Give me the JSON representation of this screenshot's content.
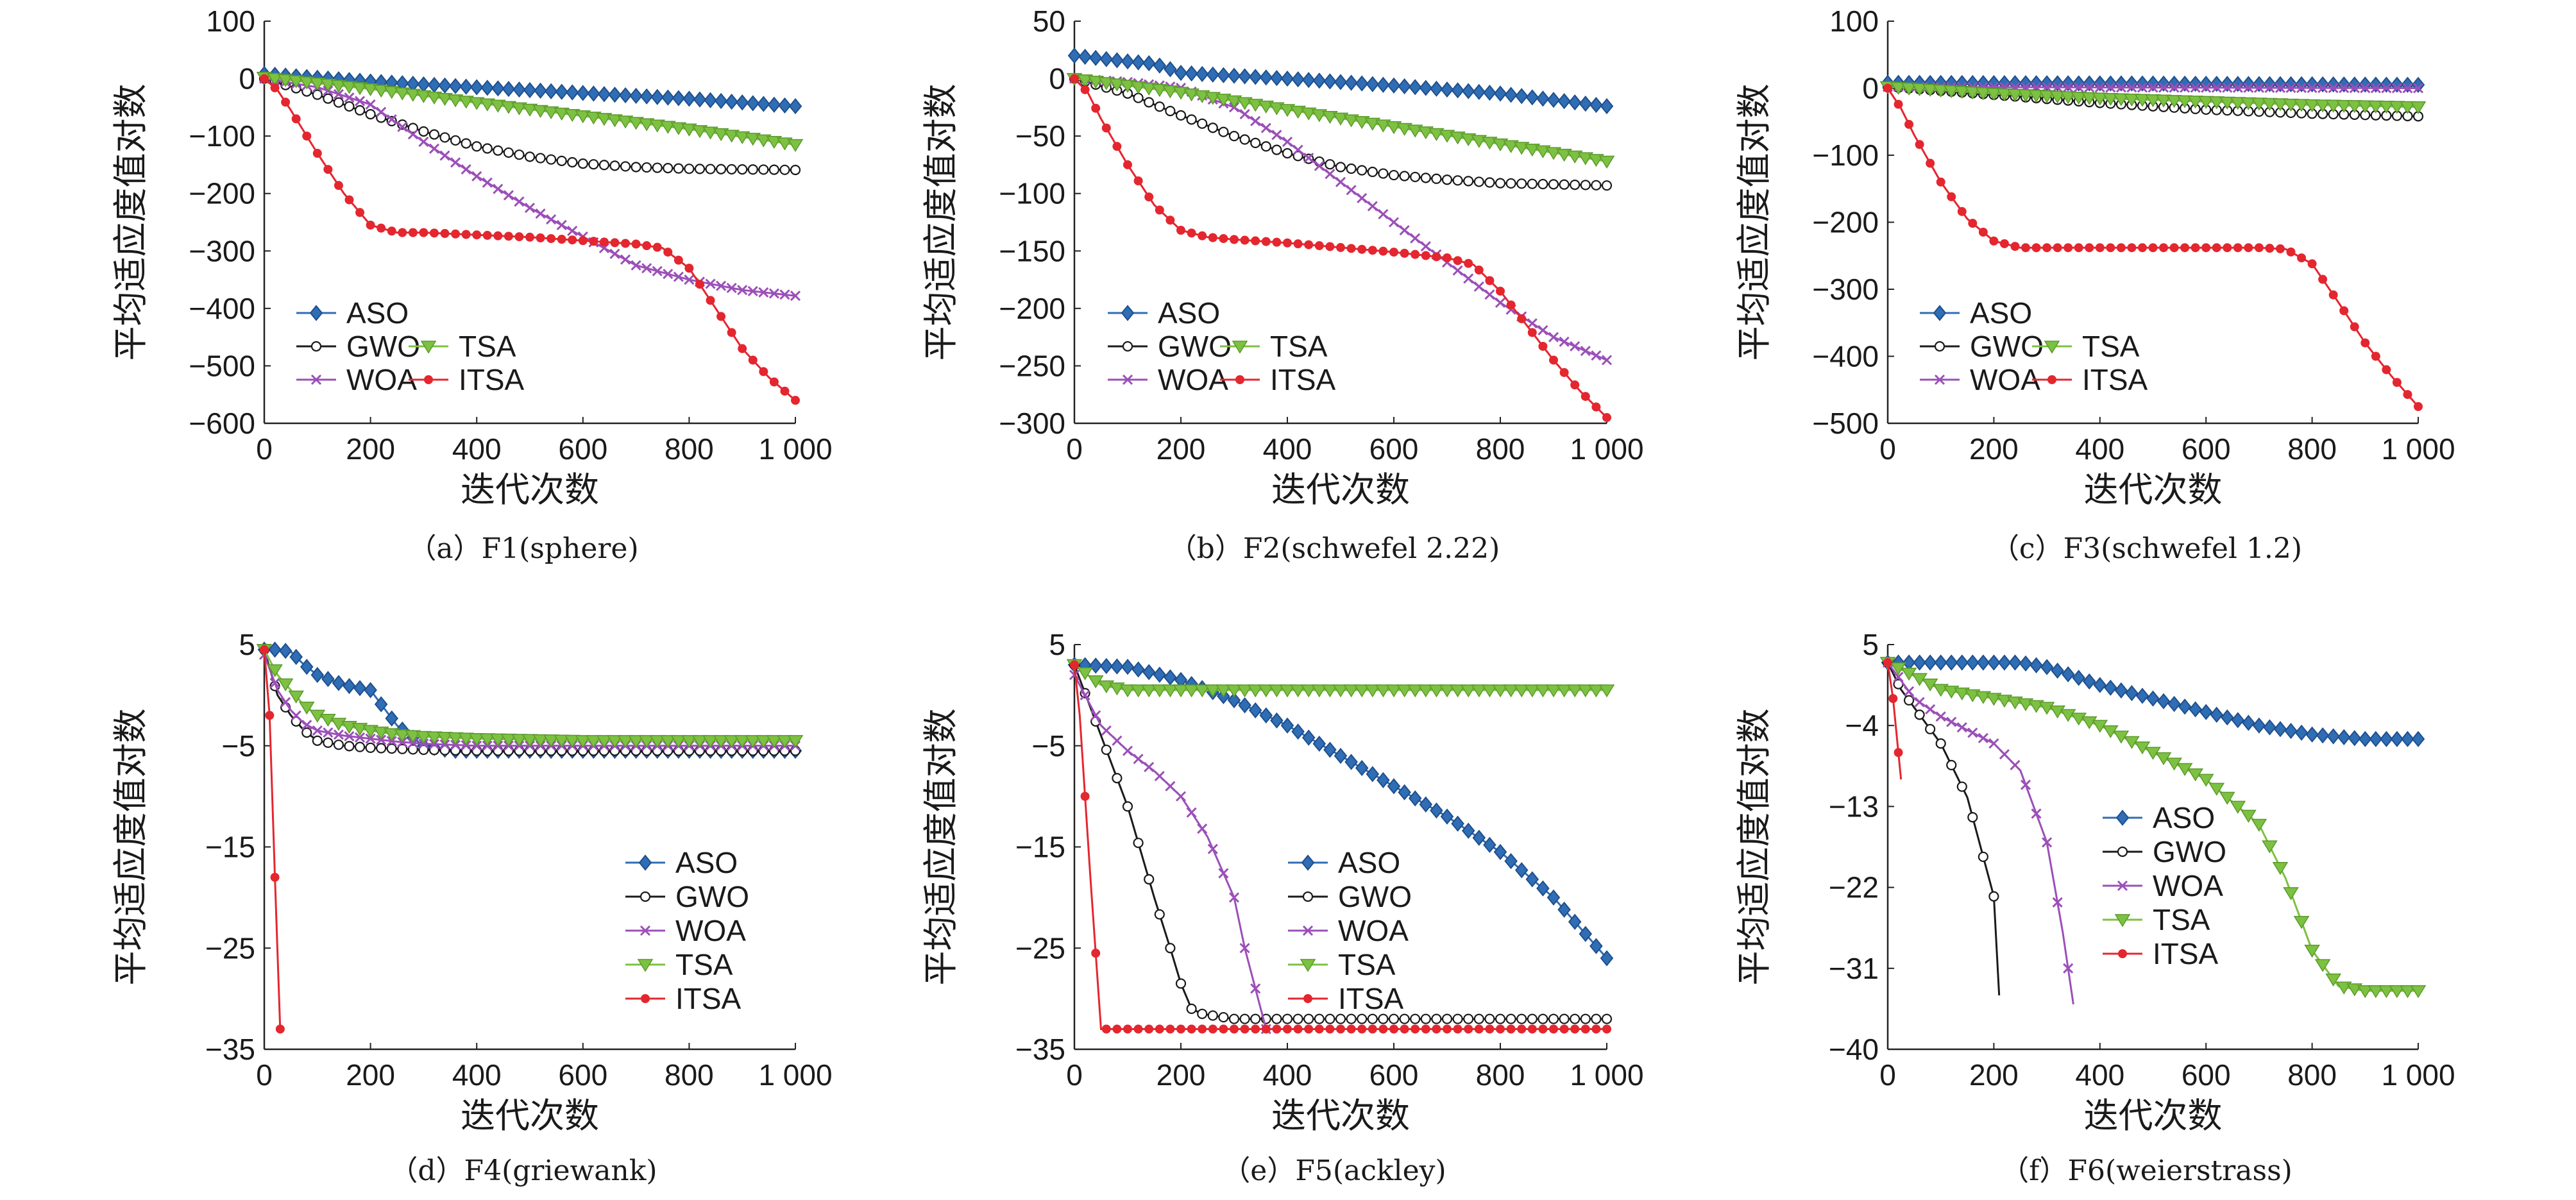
{
  "colors": {
    "ASO": "#2f6db5",
    "GWO": "#1a1a1a",
    "WOA": "#9b4fb8",
    "TSA": "#7dc142",
    "ITSA": "#e4262f"
  },
  "markers": {
    "ASO": "diamond",
    "GWO": "circle",
    "WOA": "x",
    "TSA": "triangle-down",
    "ITSA": "dot"
  },
  "chart_data": [
    {
      "type": "line",
      "caption": "（a）F1(sphere)",
      "xlabel": "迭代次数",
      "ylabel": "平均适应度值对数",
      "xlim": [
        0,
        1000
      ],
      "ylim": [
        -600,
        100
      ],
      "xticks": [
        "0",
        "200",
        "400",
        "600",
        "800",
        "1 000"
      ],
      "yticks": [
        "100",
        "0",
        "−100",
        "−200",
        "−300",
        "−400",
        "−500",
        "−600"
      ],
      "legend_layout": "three-row",
      "series": [
        {
          "name": "ASO",
          "x": [
            0,
            200,
            400,
            600,
            800,
            1000
          ],
          "y": [
            8,
            -5,
            -15,
            -25,
            -35,
            -48
          ]
        },
        {
          "name": "GWO",
          "x": [
            0,
            100,
            200,
            300,
            400,
            500,
            600,
            700,
            800,
            900,
            1000
          ],
          "y": [
            0,
            -28,
            -62,
            -92,
            -118,
            -136,
            -148,
            -154,
            -157,
            -158,
            -159
          ]
        },
        {
          "name": "WOA",
          "x": [
            0,
            100,
            200,
            300,
            400,
            500,
            600,
            700,
            800,
            900,
            1000
          ],
          "y": [
            0,
            -15,
            -45,
            -110,
            -170,
            -225,
            -275,
            -325,
            -350,
            -368,
            -378
          ]
        },
        {
          "name": "TSA",
          "x": [
            0,
            200,
            400,
            600,
            800,
            1000
          ],
          "y": [
            2,
            -18,
            -42,
            -65,
            -88,
            -115
          ]
        },
        {
          "name": "ITSA",
          "x": [
            0,
            25,
            50,
            100,
            150,
            200,
            250,
            300,
            400,
            500,
            600,
            700,
            750,
            800,
            850,
            900,
            950,
            1000
          ],
          "y": [
            0,
            -20,
            -55,
            -130,
            -200,
            -255,
            -268,
            -268,
            -272,
            -276,
            -282,
            -288,
            -295,
            -330,
            -400,
            -470,
            -520,
            -560
          ]
        }
      ]
    },
    {
      "type": "line",
      "caption": "（b）F2(schwefel 2.22)",
      "xlabel": "迭代次数",
      "ylabel": "平均适应度值对数",
      "xlim": [
        0,
        1000
      ],
      "ylim": [
        -300,
        50
      ],
      "xticks": [
        "0",
        "200",
        "400",
        "600",
        "800",
        "1 000"
      ],
      "yticks": [
        "50",
        "0",
        "−50",
        "−100",
        "−150",
        "−200",
        "−250",
        "−300"
      ],
      "legend_layout": "three-row",
      "series": [
        {
          "name": "ASO",
          "x": [
            0,
            100,
            150,
            200,
            400,
            600,
            800,
            1000
          ],
          "y": [
            20,
            15,
            13,
            5,
            0,
            -6,
            -13,
            -24
          ]
        },
        {
          "name": "GWO",
          "x": [
            0,
            100,
            200,
            300,
            400,
            500,
            600,
            700,
            800,
            900,
            1000
          ],
          "y": [
            0,
            -13,
            -32,
            -50,
            -65,
            -77,
            -84,
            -88,
            -91,
            -92,
            -93
          ]
        },
        {
          "name": "WOA",
          "x": [
            0,
            100,
            200,
            300,
            400,
            500,
            600,
            700,
            800,
            900,
            1000
          ],
          "y": [
            0,
            -3,
            -8,
            -25,
            -55,
            -90,
            -125,
            -160,
            -195,
            -225,
            -245
          ]
        },
        {
          "name": "TSA",
          "x": [
            0,
            200,
            400,
            600,
            800,
            1000
          ],
          "y": [
            0,
            -12,
            -27,
            -42,
            -57,
            -72
          ]
        },
        {
          "name": "ITSA",
          "x": [
            0,
            25,
            50,
            100,
            150,
            200,
            250,
            300,
            400,
            500,
            600,
            700,
            750,
            800,
            850,
            900,
            950,
            1000
          ],
          "y": [
            0,
            -12,
            -35,
            -75,
            -110,
            -132,
            -138,
            -140,
            -143,
            -147,
            -151,
            -156,
            -162,
            -185,
            -215,
            -245,
            -272,
            -295
          ]
        }
      ]
    },
    {
      "type": "line",
      "caption": "（c）F3(schwefel 1.2)",
      "xlabel": "迭代次数",
      "ylabel": "平均适应度值对数",
      "xlim": [
        0,
        1000
      ],
      "ylim": [
        -500,
        100
      ],
      "xticks": [
        "0",
        "200",
        "400",
        "600",
        "800",
        "1 000"
      ],
      "yticks": [
        "100",
        "0",
        "−100",
        "−200",
        "−300",
        "−400",
        "−500"
      ],
      "legend_layout": "three-row",
      "series": [
        {
          "name": "ASO",
          "x": [
            0,
            500,
            1000
          ],
          "y": [
            8,
            7,
            5
          ]
        },
        {
          "name": "GWO",
          "x": [
            0,
            200,
            400,
            600,
            800,
            1000
          ],
          "y": [
            2,
            -10,
            -22,
            -32,
            -38,
            -42
          ]
        },
        {
          "name": "WOA",
          "x": [
            0,
            500,
            1000
          ],
          "y": [
            2,
            1,
            0
          ]
        },
        {
          "name": "TSA",
          "x": [
            0,
            200,
            400,
            600,
            800,
            1000
          ],
          "y": [
            2,
            -8,
            -15,
            -20,
            -25,
            -28
          ]
        },
        {
          "name": "ITSA",
          "x": [
            0,
            25,
            50,
            100,
            150,
            200,
            250,
            300,
            400,
            500,
            600,
            700,
            750,
            800,
            850,
            900,
            950,
            1000
          ],
          "y": [
            0,
            -30,
            -70,
            -140,
            -195,
            -228,
            -238,
            -238,
            -238,
            -238,
            -238,
            -238,
            -240,
            -262,
            -320,
            -380,
            -430,
            -475
          ]
        }
      ]
    },
    {
      "type": "line",
      "caption": "（d）F4(griewank)",
      "xlabel": "迭代次数",
      "ylabel": "平均适应度值对数",
      "xlim": [
        0,
        1000
      ],
      "ylim": [
        -35,
        5
      ],
      "xticks": [
        "0",
        "200",
        "400",
        "600",
        "800",
        "1 000"
      ],
      "yticks": [
        "5",
        "−5",
        "−15",
        "−25",
        "−35"
      ],
      "legend_layout": "column",
      "series": [
        {
          "name": "ASO",
          "x": [
            0,
            25,
            50,
            75,
            100,
            150,
            200,
            250,
            300,
            350,
            400,
            600,
            800,
            1000
          ],
          "y": [
            4.5,
            4.5,
            4.3,
            3,
            2,
            1,
            0.5,
            -3,
            -5,
            -5.5,
            -5.5,
            -5.5,
            -5.5,
            -5.5
          ]
        },
        {
          "name": "GWO",
          "x": [
            0,
            25,
            50,
            75,
            100,
            150,
            200,
            250,
            300,
            400,
            600,
            800,
            1000
          ],
          "y": [
            4.5,
            0,
            -2,
            -3.5,
            -4.5,
            -5,
            -5.2,
            -5.3,
            -5.4,
            -5.5,
            -5.5,
            -5.5,
            -5.5
          ]
        },
        {
          "name": "WOA",
          "x": [
            0,
            25,
            50,
            75,
            100,
            150,
            200,
            250,
            300,
            400,
            600,
            800,
            1000
          ],
          "y": [
            4,
            0.5,
            -1.5,
            -2.8,
            -3.5,
            -4,
            -4.3,
            -4.6,
            -4.8,
            -5,
            -5,
            -5,
            -5
          ]
        },
        {
          "name": "TSA",
          "x": [
            0,
            25,
            50,
            75,
            100,
            150,
            200,
            250,
            300,
            400,
            600,
            800,
            1000
          ],
          "y": [
            4.5,
            2,
            0.5,
            -1,
            -2,
            -3,
            -3.5,
            -3.9,
            -4.1,
            -4.3,
            -4.5,
            -4.5,
            -4.5
          ]
        },
        {
          "name": "ITSA",
          "x": [
            0,
            10,
            20,
            30
          ],
          "y": [
            4.5,
            -2,
            -18,
            -33
          ]
        }
      ]
    },
    {
      "type": "line",
      "caption": "（e）F5(ackley)",
      "xlabel": "迭代次数",
      "ylabel": "平均适应度值对数",
      "xlim": [
        0,
        1000
      ],
      "ylim": [
        -35,
        5
      ],
      "xticks": [
        "0",
        "200",
        "400",
        "600",
        "800",
        "1 000"
      ],
      "yticks": [
        "5",
        "−5",
        "−15",
        "−25",
        "−35"
      ],
      "legend_layout": "column",
      "series": [
        {
          "name": "ASO",
          "x": [
            0,
            100,
            200,
            300,
            400,
            500,
            600,
            700,
            800,
            900,
            1000
          ],
          "y": [
            3,
            2.8,
            1.5,
            -0.5,
            -3,
            -6,
            -9,
            -12,
            -15.5,
            -20,
            -26
          ]
        },
        {
          "name": "GWO",
          "x": [
            0,
            50,
            100,
            150,
            180,
            200,
            220,
            240,
            300,
            500,
            800,
            1000
          ],
          "y": [
            3,
            -4,
            -11,
            -20,
            -25,
            -28.5,
            -31,
            -31.5,
            -32,
            -32,
            -32,
            -32
          ]
        },
        {
          "name": "WOA",
          "x": [
            0,
            50,
            100,
            150,
            200,
            250,
            300,
            320,
            340,
            360
          ],
          "y": [
            2,
            -3,
            -5.5,
            -7.5,
            -10,
            -14,
            -20,
            -25,
            -29,
            -33
          ]
        },
        {
          "name": "TSA",
          "x": [
            0,
            50,
            100,
            200,
            400,
            600,
            800,
            1000
          ],
          "y": [
            3,
            1,
            0.5,
            0.5,
            0.5,
            0.5,
            0.5,
            0.5
          ]
        },
        {
          "name": "ITSA",
          "x": [
            0,
            10,
            30,
            50,
            100,
            500,
            1000
          ],
          "y": [
            3,
            -2,
            -18,
            -33,
            -33,
            -33,
            -33
          ]
        }
      ]
    },
    {
      "type": "line",
      "caption": "（f）F6(weierstrass)",
      "xlabel": "迭代次数",
      "ylabel": "平均适应度值对数",
      "xlim": [
        0,
        1000
      ],
      "ylim": [
        -40,
        5
      ],
      "xticks": [
        "0",
        "200",
        "400",
        "600",
        "800",
        "1 000"
      ],
      "yticks": [
        "5",
        "−4",
        "−13",
        "−22",
        "−31",
        "−40"
      ],
      "legend_layout": "column",
      "series": [
        {
          "name": "ASO",
          "x": [
            0,
            100,
            200,
            250,
            300,
            400,
            500,
            600,
            700,
            800,
            900,
            1000
          ],
          "y": [
            3,
            3,
            3,
            3,
            2.5,
            0.5,
            -1,
            -2.5,
            -4,
            -5,
            -5.5,
            -5.5
          ]
        },
        {
          "name": "GWO",
          "x": [
            0,
            25,
            50,
            100,
            150,
            200,
            210
          ],
          "y": [
            3,
            0,
            -2,
            -6,
            -12,
            -23,
            -34
          ]
        },
        {
          "name": "WOA",
          "x": [
            0,
            50,
            100,
            200,
            250,
            300,
            330,
            350
          ],
          "y": [
            3,
            -1,
            -3,
            -6,
            -9,
            -17,
            -27,
            -35
          ]
        },
        {
          "name": "TSA",
          "x": [
            0,
            100,
            200,
            300,
            400,
            500,
            600,
            700,
            750,
            800,
            850,
            900,
            1000
          ],
          "y": [
            3,
            0,
            -1,
            -2,
            -4,
            -7,
            -10,
            -15,
            -21,
            -29,
            -33,
            -33.5,
            -33.5
          ]
        },
        {
          "name": "ITSA",
          "x": [
            0,
            10,
            25
          ],
          "y": [
            3,
            -1,
            -10
          ]
        }
      ]
    }
  ]
}
